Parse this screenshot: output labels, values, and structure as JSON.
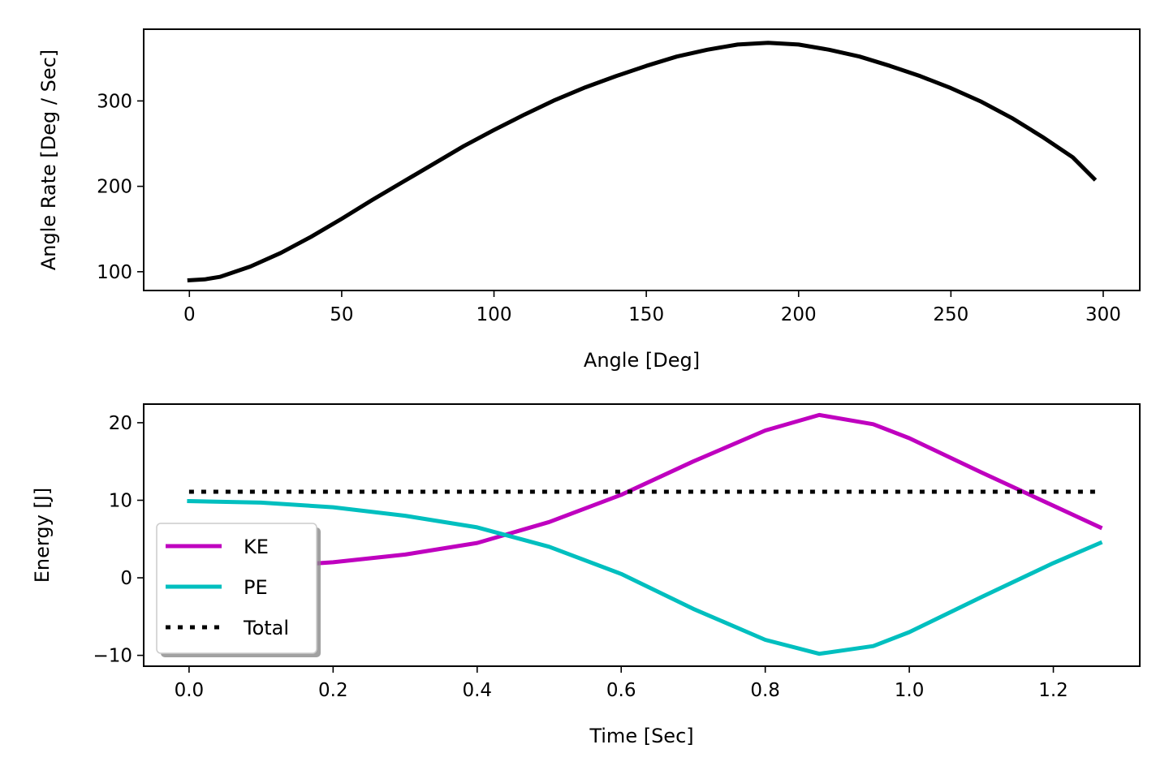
{
  "chart_data": [
    {
      "type": "line",
      "xlabel": "Angle [Deg]",
      "ylabel": "Angle Rate [Deg / Sec]",
      "xlim": [
        -15,
        312
      ],
      "ylim": [
        78,
        384
      ],
      "xticks": [
        0,
        50,
        100,
        150,
        200,
        250,
        300
      ],
      "xtick_labels": [
        "0",
        "50",
        "100",
        "150",
        "200",
        "250",
        "300"
      ],
      "yticks": [
        100,
        200,
        300
      ],
      "ytick_labels": [
        "100",
        "200",
        "300"
      ],
      "grid": false,
      "series": [
        {
          "color": "#000000",
          "style": "solid",
          "x": [
            0,
            5,
            10,
            20,
            30,
            40,
            50,
            60,
            70,
            80,
            90,
            100,
            110,
            120,
            130,
            140,
            150,
            160,
            170,
            180,
            190,
            200,
            210,
            220,
            230,
            240,
            250,
            260,
            270,
            280,
            290,
            297
          ],
          "y": [
            90,
            91,
            94,
            106,
            122,
            141,
            162,
            184,
            205,
            226,
            247,
            266,
            284,
            301,
            316,
            329,
            341,
            352,
            360,
            366,
            368,
            366,
            360,
            352,
            341,
            329,
            315,
            299,
            280,
            258,
            234,
            209
          ]
        }
      ]
    },
    {
      "type": "line",
      "xlabel": "Time [Sec]",
      "ylabel": "Energy [J]",
      "xlim": [
        -0.063,
        1.32
      ],
      "ylim": [
        -11.4,
        22.4
      ],
      "xticks": [
        0.0,
        0.2,
        0.4,
        0.6,
        0.8,
        1.0,
        1.2
      ],
      "xtick_labels": [
        "0.0",
        "0.2",
        "0.4",
        "0.6",
        "0.8",
        "1.0",
        "1.2"
      ],
      "yticks": [
        -10,
        0,
        10,
        20
      ],
      "ytick_labels": [
        "−10",
        "0",
        "10",
        "20"
      ],
      "grid": false,
      "legend_position": "lower-left",
      "series": [
        {
          "name": "KE",
          "color": "#bf00bf",
          "style": "solid",
          "x": [
            0.0,
            0.1,
            0.2,
            0.3,
            0.4,
            0.5,
            0.6,
            0.7,
            0.8,
            0.875,
            0.95,
            1.0,
            1.1,
            1.2,
            1.265
          ],
          "y": [
            1.2,
            1.4,
            2.0,
            3.0,
            4.5,
            7.2,
            10.7,
            15.0,
            19.0,
            21.0,
            19.8,
            18.0,
            13.6,
            9.3,
            6.5
          ]
        },
        {
          "name": "PE",
          "color": "#00bfbf",
          "style": "solid",
          "x": [
            0.0,
            0.1,
            0.2,
            0.3,
            0.4,
            0.5,
            0.6,
            0.7,
            0.8,
            0.875,
            0.95,
            1.0,
            1.1,
            1.2,
            1.265
          ],
          "y": [
            9.9,
            9.7,
            9.1,
            8.0,
            6.5,
            4.0,
            0.5,
            -4.0,
            -8.0,
            -9.8,
            -8.8,
            -7.0,
            -2.5,
            1.9,
            4.5
          ]
        },
        {
          "name": "Total",
          "color": "#000000",
          "style": "dotted",
          "x": [
            0.0,
            1.265
          ],
          "y": [
            11.1,
            11.1
          ]
        }
      ]
    }
  ]
}
